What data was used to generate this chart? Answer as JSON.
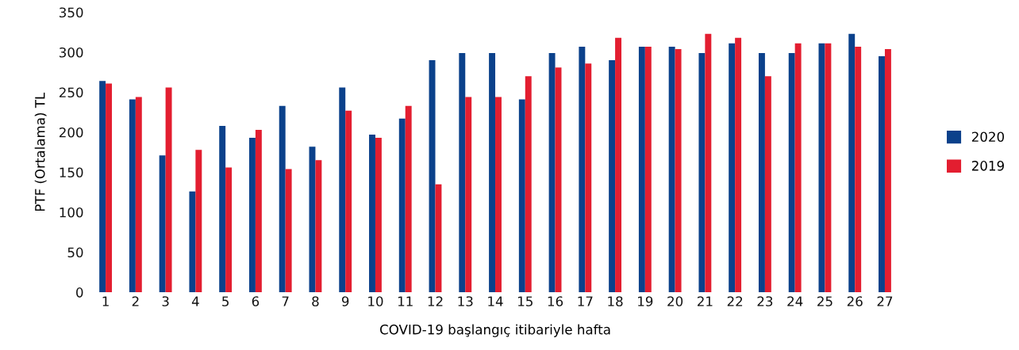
{
  "chart_data": {
    "type": "bar",
    "xlabel": "COVID-19 başlangıç itibariyle hafta",
    "ylabel": "PTF (Ortalama) TL",
    "categories": [
      "1",
      "2",
      "3",
      "4",
      "5",
      "6",
      "7",
      "8",
      "9",
      "10",
      "11",
      "12",
      "13",
      "14",
      "15",
      "16",
      "17",
      "18",
      "19",
      "20",
      "21",
      "22",
      "23",
      "24",
      "25",
      "26",
      "27"
    ],
    "series": [
      {
        "name": "2020",
        "color": "#0b418b",
        "values": [
          264,
          241,
          171,
          126,
          208,
          193,
          233,
          182,
          256,
          197,
          217,
          290,
          299,
          299,
          241,
          299,
          307,
          290,
          307,
          307,
          299,
          311,
          299,
          299,
          311,
          323,
          295
        ]
      },
      {
        "name": "2019",
        "color": "#e31e30",
        "values": [
          261,
          244,
          256,
          178,
          156,
          203,
          154,
          165,
          227,
          193,
          233,
          135,
          244,
          244,
          270,
          281,
          286,
          318,
          307,
          304,
          323,
          318,
          270,
          311,
          311,
          307,
          304
        ]
      }
    ],
    "ylim": [
      0,
      350
    ],
    "yticks": [
      0,
      50,
      100,
      150,
      200,
      250,
      300,
      350
    ],
    "grid": false,
    "legend": "right"
  }
}
